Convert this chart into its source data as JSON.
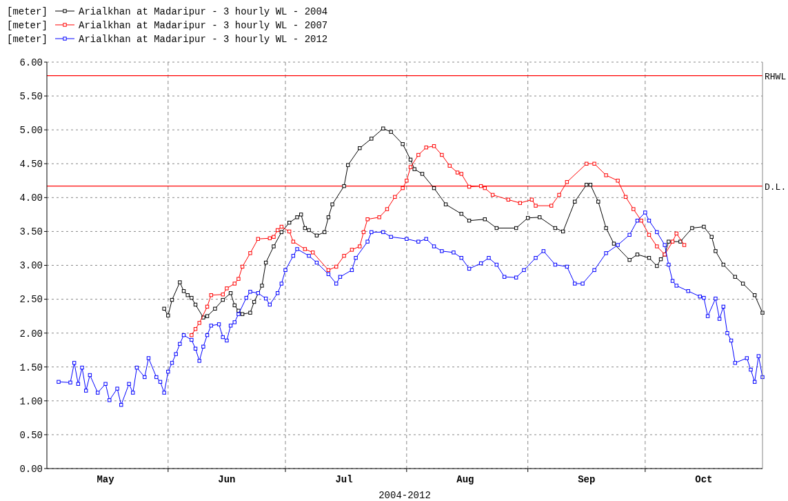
{
  "chart_data": {
    "type": "line",
    "xlabel": "2004-2012",
    "ylabel": "[meter]",
    "legend": "top left",
    "grid": true,
    "marker": "square",
    "line_style": "solid",
    "xlim": [
      "--05-01",
      "--10-31"
    ],
    "xticks": [
      {
        "value": "--05-16",
        "label": "May"
      },
      {
        "value": "--06-01",
        "label": null
      },
      {
        "value": "--06-16",
        "label": "Jun"
      },
      {
        "value": "--07-01",
        "label": null
      },
      {
        "value": "--07-16",
        "label": "Jul"
      },
      {
        "value": "--08-01",
        "label": null
      },
      {
        "value": "--08-16",
        "label": "Aug"
      },
      {
        "value": "--09-01",
        "label": null
      },
      {
        "value": "--09-16",
        "label": "Sep"
      },
      {
        "value": "--10-01",
        "label": null
      },
      {
        "value": "--10-16",
        "label": "Oct"
      }
    ],
    "ylim": [
      0,
      6
    ],
    "yticks": [
      {
        "value": 0,
        "label": "0.00"
      },
      {
        "value": 0.5,
        "label": "0.50"
      },
      {
        "value": 1,
        "label": "1.00"
      },
      {
        "value": 1.5,
        "label": "1.50"
      },
      {
        "value": 2,
        "label": "2.00"
      },
      {
        "value": 2.5,
        "label": "2.50"
      },
      {
        "value": 3,
        "label": "3.00"
      },
      {
        "value": 3.5,
        "label": "3.50"
      },
      {
        "value": 4,
        "label": "4.00"
      },
      {
        "value": 4.5,
        "label": "4.50"
      },
      {
        "value": 5,
        "label": "5.00"
      },
      {
        "value": 5.5,
        "label": "5.50"
      },
      {
        "value": 6,
        "label": "6.00"
      }
    ],
    "ref_lines": [
      {
        "axis": "y",
        "value": 5.8,
        "label": "RHWL",
        "color": "#ff0000"
      },
      {
        "axis": "y",
        "value": 4.17,
        "label": "D.L.",
        "color": "#ff0000"
      }
    ],
    "series": [
      {
        "name": "Arialkhan at Madaripur - 3 hourly WL - 2004",
        "color": "#000000",
        "x": [
          "--05-31",
          "--06-01",
          "--06-02",
          "--06-04",
          "--06-05",
          "--06-06",
          "--06-07",
          "--06-08",
          "--06-10",
          "--06-11",
          "--06-13",
          "--06-15",
          "--06-17",
          "--06-18",
          "--06-19",
          "--06-20",
          "--06-22",
          "--06-23",
          "--06-25",
          "--06-26",
          "--06-28",
          "--06-30",
          "--07-02",
          "--07-04",
          "--07-05",
          "--07-06",
          "--07-07",
          "--07-09",
          "--07-11",
          "--07-12",
          "--07-13",
          "--07-16",
          "--07-17",
          "--07-20",
          "--07-23",
          "--07-26",
          "--07-28",
          "--07-31",
          "--08-02",
          "--08-03",
          "--08-05",
          "--08-08",
          "--08-11",
          "--08-15",
          "--08-17",
          "--08-21",
          "--08-24",
          "--08-29",
          "--09-01",
          "--09-04",
          "--09-08",
          "--09-10",
          "--09-13",
          "--09-16",
          "--09-17",
          "--09-19",
          "--09-21",
          "--09-23",
          "--09-27",
          "--09-29",
          "--10-02",
          "--10-04",
          "--10-05",
          "--10-06",
          "--10-07",
          "--10-10",
          "--10-13",
          "--10-16",
          "--10-18",
          "--10-19",
          "--10-21",
          "--10-24",
          "--10-26",
          "--10-29",
          "--10-31"
        ],
        "values": [
          2.36,
          2.26,
          2.49,
          2.75,
          2.62,
          2.56,
          2.52,
          2.42,
          2.23,
          2.25,
          2.36,
          2.49,
          2.59,
          2.41,
          2.33,
          2.28,
          2.3,
          2.46,
          2.7,
          3.04,
          3.28,
          3.49,
          3.63,
          3.71,
          3.75,
          3.55,
          3.52,
          3.44,
          3.49,
          3.71,
          3.9,
          4.17,
          4.48,
          4.73,
          4.87,
          5.02,
          4.97,
          4.79,
          4.56,
          4.42,
          4.35,
          4.14,
          3.9,
          3.76,
          3.66,
          3.68,
          3.55,
          3.55,
          3.7,
          3.71,
          3.55,
          3.5,
          3.94,
          4.19,
          4.19,
          3.94,
          3.55,
          3.32,
          3.08,
          3.16,
          3.11,
          2.99,
          3.09,
          3.16,
          3.35,
          3.35,
          3.55,
          3.57,
          3.42,
          3.21,
          3.01,
          2.83,
          2.73,
          2.56,
          2.3
        ]
      },
      {
        "name": "Arialkhan at Madaripur - 3 hourly WL - 2007",
        "color": "#ff0000",
        "x": [
          "--06-07",
          "--06-08",
          "--06-09",
          "--06-11",
          "--06-12",
          "--06-15",
          "--06-16",
          "--06-18",
          "--06-19",
          "--06-20",
          "--06-22",
          "--06-24",
          "--06-27",
          "--06-28",
          "--06-29",
          "--06-30",
          "--07-02",
          "--07-03",
          "--07-06",
          "--07-08",
          "--07-12",
          "--07-14",
          "--07-16",
          "--07-18",
          "--07-20",
          "--07-21",
          "--07-22",
          "--07-25",
          "--07-27",
          "--07-29",
          "--07-31",
          "--08-01",
          "--08-02",
          "--08-04",
          "--08-06",
          "--08-08",
          "--08-10",
          "--08-12",
          "--08-14",
          "--08-15",
          "--08-17",
          "--08-20",
          "--08-21",
          "--08-23",
          "--08-27",
          "--08-30",
          "--09-02",
          "--09-03",
          "--09-07",
          "--09-09",
          "--09-11",
          "--09-16",
          "--09-18",
          "--09-21",
          "--09-24",
          "--09-26",
          "--09-28",
          "--09-30",
          "--10-02",
          "--10-04",
          "--10-06",
          "--10-08",
          "--10-09",
          "--10-11"
        ],
        "values": [
          1.97,
          2.06,
          2.15,
          2.39,
          2.56,
          2.57,
          2.66,
          2.73,
          2.8,
          2.98,
          3.18,
          3.39,
          3.4,
          3.42,
          3.52,
          3.57,
          3.5,
          3.35,
          3.24,
          3.19,
          2.93,
          2.98,
          3.14,
          3.23,
          3.28,
          3.49,
          3.68,
          3.71,
          3.83,
          4.01,
          4.14,
          4.25,
          4.45,
          4.63,
          4.74,
          4.76,
          4.63,
          4.47,
          4.37,
          4.35,
          4.16,
          4.17,
          4.14,
          4.04,
          3.97,
          3.92,
          3.97,
          3.88,
          3.88,
          4.04,
          4.23,
          4.5,
          4.5,
          4.33,
          4.25,
          4.01,
          3.83,
          3.66,
          3.45,
          3.28,
          3.16,
          3.35,
          3.47,
          3.3
        ]
      },
      {
        "name": "Arialkhan at Madaripur - 3 hourly WL - 2012",
        "color": "#0000ff",
        "x": [
          "--05-04",
          "--05-07",
          "--05-08",
          "--05-09",
          "--05-10",
          "--05-11",
          "--05-12",
          "--05-14",
          "--05-16",
          "--05-17",
          "--05-19",
          "--05-20",
          "--05-22",
          "--05-23",
          "--05-24",
          "--05-26",
          "--05-27",
          "--05-29",
          "--05-30",
          "--05-31",
          "--06-01",
          "--06-02",
          "--06-03",
          "--06-04",
          "--06-05",
          "--06-07",
          "--06-08",
          "--06-09",
          "--06-10",
          "--06-11",
          "--06-12",
          "--06-14",
          "--06-15",
          "--06-16",
          "--06-17",
          "--06-18",
          "--06-19",
          "--06-21",
          "--06-22",
          "--06-24",
          "--06-26",
          "--06-27",
          "--06-29",
          "--06-30",
          "--07-01",
          "--07-03",
          "--07-04",
          "--07-07",
          "--07-09",
          "--07-12",
          "--07-14",
          "--07-15",
          "--07-18",
          "--07-19",
          "--07-22",
          "--07-23",
          "--07-26",
          "--07-28",
          "--08-01",
          "--08-04",
          "--08-06",
          "--08-08",
          "--08-10",
          "--08-13",
          "--08-15",
          "--08-17",
          "--08-20",
          "--08-22",
          "--08-24",
          "--08-26",
          "--08-29",
          "--08-31",
          "--09-03",
          "--09-05",
          "--09-08",
          "--09-11",
          "--09-13",
          "--09-15",
          "--09-18",
          "--09-21",
          "--09-24",
          "--09-27",
          "--09-29",
          "--10-01",
          "--10-02",
          "--10-04",
          "--10-06",
          "--10-07",
          "--10-08",
          "--10-09",
          "--10-12",
          "--10-15",
          "--10-16",
          "--10-17",
          "--10-19",
          "--10-20",
          "--10-21",
          "--10-22",
          "--10-23",
          "--10-24",
          "--10-27",
          "--10-28",
          "--10-29",
          "--10-30",
          "--10-31"
        ],
        "values": [
          1.28,
          1.27,
          1.56,
          1.25,
          1.49,
          1.15,
          1.38,
          1.12,
          1.25,
          1.01,
          1.18,
          0.94,
          1.25,
          1.12,
          1.49,
          1.35,
          1.63,
          1.35,
          1.28,
          1.12,
          1.43,
          1.56,
          1.69,
          1.84,
          1.97,
          1.9,
          1.77,
          1.59,
          1.8,
          1.97,
          2.11,
          2.13,
          1.94,
          1.89,
          2.11,
          2.16,
          2.28,
          2.52,
          2.61,
          2.59,
          2.51,
          2.42,
          2.59,
          2.73,
          2.93,
          3.14,
          3.24,
          3.14,
          3.04,
          2.87,
          2.73,
          2.83,
          2.93,
          3.11,
          3.35,
          3.49,
          3.49,
          3.42,
          3.39,
          3.35,
          3.39,
          3.28,
          3.21,
          3.19,
          3.11,
          2.95,
          3.03,
          3.11,
          3.01,
          2.83,
          2.82,
          2.93,
          3.11,
          3.21,
          3.01,
          2.98,
          2.73,
          2.73,
          2.93,
          3.18,
          3.3,
          3.45,
          3.66,
          3.78,
          3.66,
          3.49,
          3.3,
          3.01,
          2.77,
          2.7,
          2.62,
          2.54,
          2.52,
          2.25,
          2.51,
          2.21,
          2.39,
          2,
          1.89,
          1.56,
          1.63,
          1.46,
          1.28,
          1.66,
          1.35
        ]
      }
    ]
  }
}
